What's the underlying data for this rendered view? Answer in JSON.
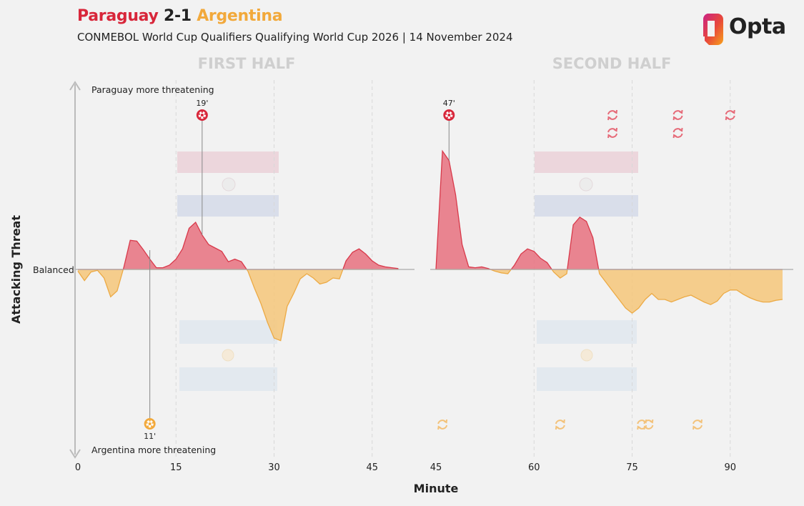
{
  "header": {
    "home_team": "Paraguay",
    "score": "2-1",
    "away_team": "Argentina",
    "subtitle": "CONMEBOL World Cup Qualifiers Qualifying World Cup 2026 | 14 November 2024",
    "brand": "Opta"
  },
  "colors": {
    "home": "#e8717f",
    "home_line": "#d8394a",
    "away": "#f6c77a",
    "away_line": "#ecaa45",
    "subs_home": "#e66a78",
    "subs_away": "#f3c27a"
  },
  "chart_data": {
    "type": "area",
    "xlabel": "Minute",
    "ylabel": "Attacking Threat",
    "zero_label": "Balanced",
    "top_note": "Paraguay more threatening",
    "bottom_note": "Argentina more threatening",
    "grid": true,
    "panels": [
      {
        "title": "FIRST HALF",
        "xlim": [
          0,
          51
        ],
        "ticks": [
          0,
          15,
          30,
          45
        ],
        "tick_labels": [
          "0",
          "15",
          "30",
          "45"
        ],
        "x": [
          0,
          1,
          2,
          3,
          4,
          5,
          6,
          7,
          8,
          9,
          10,
          11,
          12,
          13,
          14,
          15,
          16,
          17,
          18,
          19,
          20,
          21,
          22,
          23,
          24,
          25,
          26,
          27,
          28,
          29,
          30,
          31,
          32,
          33,
          34,
          35,
          36,
          37,
          38,
          39,
          40,
          41,
          42,
          43,
          44,
          45,
          46,
          47,
          48,
          49
        ],
        "y": [
          -0.02,
          -0.13,
          -0.03,
          -0.01,
          -0.1,
          -0.32,
          -0.25,
          0.02,
          0.34,
          0.33,
          0.23,
          0.12,
          0.02,
          0.02,
          0.05,
          0.12,
          0.24,
          0.48,
          0.55,
          0.4,
          0.29,
          0.25,
          0.21,
          0.09,
          0.12,
          0.09,
          -0.02,
          -0.22,
          -0.4,
          -0.62,
          -0.8,
          -0.83,
          -0.43,
          -0.28,
          -0.11,
          -0.05,
          -0.1,
          -0.17,
          -0.15,
          -0.1,
          -0.11,
          0.1,
          0.2,
          0.24,
          0.18,
          0.1,
          0.05,
          0.03,
          0.02,
          0.01
        ]
      },
      {
        "title": "SECOND HALF",
        "xlim": [
          45,
          99
        ],
        "ticks": [
          45,
          60,
          75,
          90
        ],
        "tick_labels": [
          "45",
          "60",
          "75",
          "90"
        ],
        "x": [
          45,
          46,
          47,
          48,
          49,
          50,
          51,
          52,
          53,
          54,
          55,
          56,
          57,
          58,
          59,
          60,
          61,
          62,
          63,
          64,
          65,
          66,
          67,
          68,
          69,
          70,
          71,
          72,
          73,
          74,
          75,
          76,
          77,
          78,
          79,
          80,
          81,
          82,
          83,
          84,
          85,
          86,
          87,
          88,
          89,
          90,
          91,
          92,
          93,
          94,
          95,
          96,
          97,
          98
        ],
        "y": [
          0,
          1.38,
          1.27,
          0.87,
          0.29,
          0.03,
          0.02,
          0.03,
          0.01,
          -0.02,
          -0.04,
          -0.05,
          0.05,
          0.18,
          0.24,
          0.21,
          0.13,
          0.08,
          -0.03,
          -0.1,
          -0.05,
          0.52,
          0.61,
          0.56,
          0.37,
          -0.05,
          -0.15,
          -0.25,
          -0.35,
          -0.45,
          -0.51,
          -0.45,
          -0.35,
          -0.28,
          -0.35,
          -0.35,
          -0.38,
          -0.35,
          -0.32,
          -0.3,
          -0.34,
          -0.38,
          -0.41,
          -0.37,
          -0.28,
          -0.24,
          -0.24,
          -0.29,
          -0.33,
          -0.36,
          -0.38,
          -0.38,
          -0.36,
          -0.35
        ]
      }
    ],
    "goals_home": [
      {
        "minute": 19,
        "label": "19'"
      },
      {
        "minute": 47,
        "label": "47'"
      }
    ],
    "goals_away": [
      {
        "minute": 11,
        "label": "11'"
      }
    ],
    "subs_home": [
      {
        "minute": 72,
        "row": 0
      },
      {
        "minute": 72,
        "row": 1
      },
      {
        "minute": 82,
        "row": 0
      },
      {
        "minute": 82,
        "row": 1
      },
      {
        "minute": 90,
        "row": 0
      }
    ],
    "subs_away": [
      {
        "minute": 46
      },
      {
        "minute": 64
      },
      {
        "minute": 76.5
      },
      {
        "minute": 77.5
      },
      {
        "minute": 85
      }
    ]
  }
}
